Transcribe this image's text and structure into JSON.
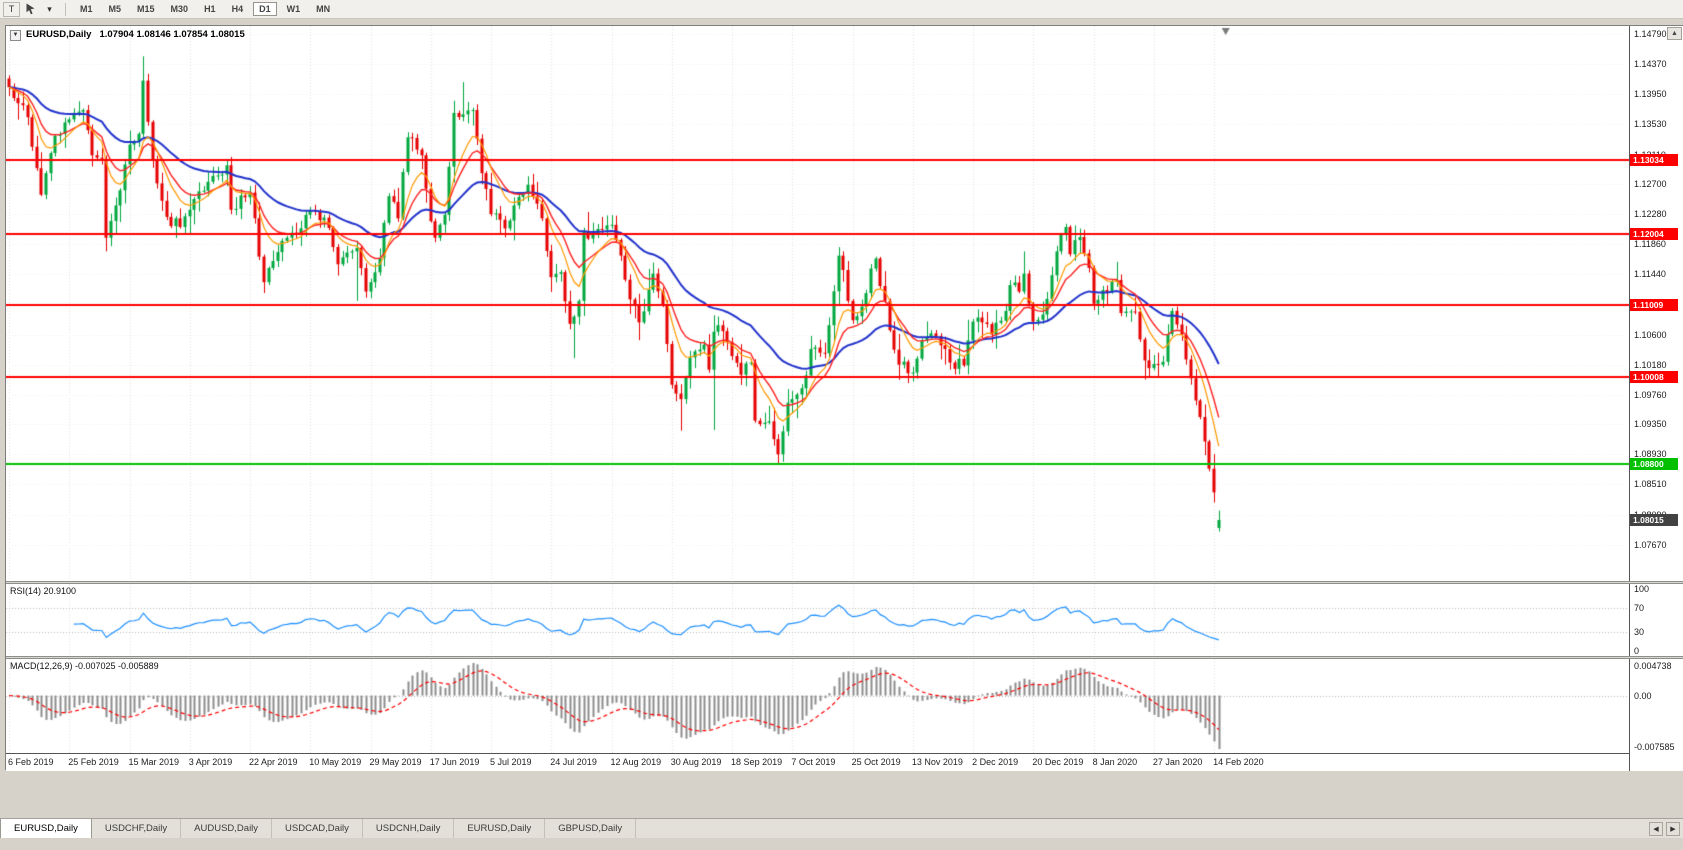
{
  "toolbar": {
    "text_tool": "T",
    "timeframes": [
      "M1",
      "M5",
      "M15",
      "M30",
      "H1",
      "H4",
      "D1",
      "W1",
      "MN"
    ],
    "active_timeframe": "D1"
  },
  "icons": {
    "chart_menu": "▼",
    "caret_down": "▾",
    "scroll_up": "▲",
    "tab_left": "◀",
    "tab_right": "▶"
  },
  "chart": {
    "symbol_period": "EURUSD,Daily",
    "ohlc": "1.07904 1.08146 1.07854 1.08015"
  },
  "rsi": {
    "label": "RSI(14) 20.9100",
    "value": 20.91,
    "axis": [
      "100",
      "70",
      "30",
      "0"
    ],
    "levels": [
      70,
      30
    ]
  },
  "macd": {
    "label": "MACD(12,26,9) -0.007025 -0.005889",
    "macd_value": -0.007025,
    "signal_value": -0.005889,
    "axis_max": "0.004738",
    "axis_zero": "0.00",
    "axis_min": "-0.007585"
  },
  "tabs": [
    {
      "label": "EURUSD,Daily",
      "active": true
    },
    {
      "label": "USDCHF,Daily",
      "active": false
    },
    {
      "label": "AUDUSD,Daily",
      "active": false
    },
    {
      "label": "USDCAD,Daily",
      "active": false
    },
    {
      "label": "USDCNH,Daily",
      "active": false
    },
    {
      "label": "EURUSD,Daily",
      "active": false
    },
    {
      "label": "GBPUSD,Daily",
      "active": false
    }
  ],
  "chart_data": {
    "type": "candlestick",
    "symbol": "EURUSD",
    "timeframe": "Daily",
    "num_bars": 262,
    "bars_per_label": 13,
    "ylim": [
      1.07164,
      1.14902
    ],
    "price_axis_labels": [
      "1.14790",
      "1.14370",
      "1.13950",
      "1.13530",
      "1.13110",
      "1.12700",
      "1.12280",
      "1.11860",
      "1.11440",
      "1.11020",
      "1.10600",
      "1.10180",
      "1.09760",
      "1.09350",
      "1.08930",
      "1.08510",
      "1.08090",
      "1.07670"
    ],
    "date_axis_labels": [
      "6 Feb 2019",
      "25 Feb 2019",
      "15 Mar 2019",
      "3 Apr 2019",
      "22 Apr 2019",
      "10 May 2019",
      "29 May 2019",
      "17 Jun 2019",
      "5 Jul 2019",
      "24 Jul 2019",
      "12 Aug 2019",
      "30 Aug 2019",
      "18 Sep 2019",
      "7 Oct 2019",
      "25 Oct 2019",
      "13 Nov 2019",
      "2 Dec 2019",
      "20 Dec 2019",
      "8 Jan 2020",
      "27 Jan 2020",
      "14 Feb 2020"
    ],
    "last_bar": {
      "open": 1.07904,
      "high": 1.08146,
      "low": 1.07854,
      "close": 1.08015
    },
    "close_waypoints": [
      [
        0,
        1.1405
      ],
      [
        4,
        1.1363
      ],
      [
        7,
        1.1255
      ],
      [
        10,
        1.1337
      ],
      [
        13,
        1.136
      ],
      [
        16,
        1.1373
      ],
      [
        18,
        1.131
      ],
      [
        20,
        1.1305
      ],
      [
        21,
        1.1195
      ],
      [
        23,
        1.124
      ],
      [
        26,
        1.1325
      ],
      [
        28,
        1.134
      ],
      [
        29,
        1.1414
      ],
      [
        31,
        1.1302
      ],
      [
        34,
        1.1224
      ],
      [
        37,
        1.121
      ],
      [
        39,
        1.1234
      ],
      [
        43,
        1.1273
      ],
      [
        47,
        1.1296
      ],
      [
        48,
        1.1234
      ],
      [
        52,
        1.1258
      ],
      [
        55,
        1.1133
      ],
      [
        58,
        1.1175
      ],
      [
        60,
        1.1195
      ],
      [
        62,
        1.12
      ],
      [
        65,
        1.1233
      ],
      [
        68,
        1.1223
      ],
      [
        71,
        1.1158
      ],
      [
        75,
        1.1181
      ],
      [
        77,
        1.112
      ],
      [
        78,
        1.1133
      ],
      [
        80,
        1.1167
      ],
      [
        82,
        1.1253
      ],
      [
        84,
        1.1222
      ],
      [
        86,
        1.1335
      ],
      [
        89,
        1.131
      ],
      [
        91,
        1.1218
      ],
      [
        92,
        1.1195
      ],
      [
        94,
        1.1227
      ],
      [
        95,
        1.1294
      ],
      [
        96,
        1.1369
      ],
      [
        98,
        1.1367
      ],
      [
        100,
        1.1373
      ],
      [
        102,
        1.1285
      ],
      [
        104,
        1.1228
      ],
      [
        107,
        1.1208
      ],
      [
        110,
        1.1252
      ],
      [
        112,
        1.1269
      ],
      [
        115,
        1.1222
      ],
      [
        117,
        1.114
      ],
      [
        119,
        1.1147
      ],
      [
        121,
        1.1075
      ],
      [
        122,
        1.1085
      ],
      [
        123,
        1.1107
      ],
      [
        124,
        1.1203
      ],
      [
        126,
        1.12
      ],
      [
        130,
        1.1213
      ],
      [
        132,
        1.117
      ],
      [
        134,
        1.1109
      ],
      [
        136,
        1.1077
      ],
      [
        139,
        1.1145
      ],
      [
        141,
        1.1101
      ],
      [
        143,
        1.099
      ],
      [
        145,
        1.097
      ],
      [
        147,
        1.1028
      ],
      [
        150,
        1.1046
      ],
      [
        151,
        1.1011
      ],
      [
        152,
        1.1064
      ],
      [
        153,
        1.1073
      ],
      [
        156,
        1.103
      ],
      [
        158,
        1.1004
      ],
      [
        160,
        1.1021
      ],
      [
        161,
        1.094
      ],
      [
        164,
        1.0939
      ],
      [
        166,
        1.0893
      ],
      [
        168,
        1.0965
      ],
      [
        169,
        1.097
      ],
      [
        172,
        1.1003
      ],
      [
        173,
        1.104
      ],
      [
        176,
        1.1034
      ],
      [
        177,
        1.1073
      ],
      [
        179,
        1.117
      ],
      [
        180,
        1.115
      ],
      [
        182,
        1.108
      ],
      [
        184,
        1.1099
      ],
      [
        186,
        1.1152
      ],
      [
        187,
        1.1166
      ],
      [
        190,
        1.1066
      ],
      [
        192,
        1.1018
      ],
      [
        195,
        1.1007
      ],
      [
        197,
        1.1052
      ],
      [
        200,
        1.1058
      ],
      [
        203,
        1.1021
      ],
      [
        206,
        1.1017
      ],
      [
        208,
        1.1078
      ],
      [
        210,
        1.1077
      ],
      [
        212,
        1.106
      ],
      [
        215,
        1.1093
      ],
      [
        216,
        1.1129
      ],
      [
        218,
        1.112
      ],
      [
        219,
        1.1145
      ],
      [
        221,
        1.1078
      ],
      [
        223,
        1.1088
      ],
      [
        226,
        1.1176
      ],
      [
        227,
        1.1199
      ],
      [
        228,
        1.121
      ],
      [
        229,
        1.1172
      ],
      [
        231,
        1.1196
      ],
      [
        233,
        1.1153
      ],
      [
        234,
        1.1103
      ],
      [
        236,
        1.1122
      ],
      [
        239,
        1.1136
      ],
      [
        240,
        1.109
      ],
      [
        243,
        1.1092
      ],
      [
        245,
        1.1024
      ],
      [
        247,
        1.1019
      ],
      [
        249,
        1.1022
      ],
      [
        251,
        1.1093
      ],
      [
        253,
        1.106
      ],
      [
        255,
        1.0999
      ],
      [
        257,
        1.0945
      ],
      [
        258,
        1.0911
      ],
      [
        259,
        1.0873
      ],
      [
        260,
        1.084
      ],
      [
        261,
        1.08015
      ]
    ],
    "bar_overrides": {
      "21": {
        "low": 1.1176
      },
      "29": {
        "high": 1.1448
      },
      "75": {
        "low": 1.1107
      },
      "98": {
        "high": 1.1412
      },
      "122": {
        "low": 1.1027
      },
      "145": {
        "low": 1.0926
      },
      "152": {
        "low": 1.0927,
        "high": 1.1087
      },
      "166": {
        "low": 1.0879
      },
      "261": {
        "open": 1.07904,
        "high": 1.08146,
        "low": 1.07854,
        "close": 1.08015
      }
    },
    "hlines": [
      {
        "price": 1.13034,
        "label": "1.13034",
        "color": "#ff0000"
      },
      {
        "price": 1.12004,
        "label": "1.12004",
        "color": "#ff0000"
      },
      {
        "price": 1.11009,
        "label": "1.11009",
        "color": "#ff0000"
      },
      {
        "price": 1.10008,
        "label": "1.10008",
        "color": "#ff0000"
      },
      {
        "price": 1.088,
        "label": "1.08800",
        "color": "#00c000"
      }
    ],
    "current_price": {
      "price": 1.08015,
      "label": "1.08015",
      "tag_color": "#424242"
    },
    "moving_averages": [
      {
        "period": 34,
        "color": "#2233cc",
        "width": 2
      },
      {
        "period": 13,
        "color": "#ff2222",
        "width": 1.4
      },
      {
        "period": 8,
        "color": "#ff9900",
        "width": 1.2
      }
    ],
    "rsi_period": 14,
    "macd_params": [
      12,
      26,
      9
    ],
    "colors": {
      "bull": "#00a83e",
      "bear": "#e60000",
      "rsi_line": "#1e90ff",
      "macd_histogram": "#8c8c8c",
      "macd_signal": "#ff0000",
      "grid": "#e4e4e4"
    }
  }
}
